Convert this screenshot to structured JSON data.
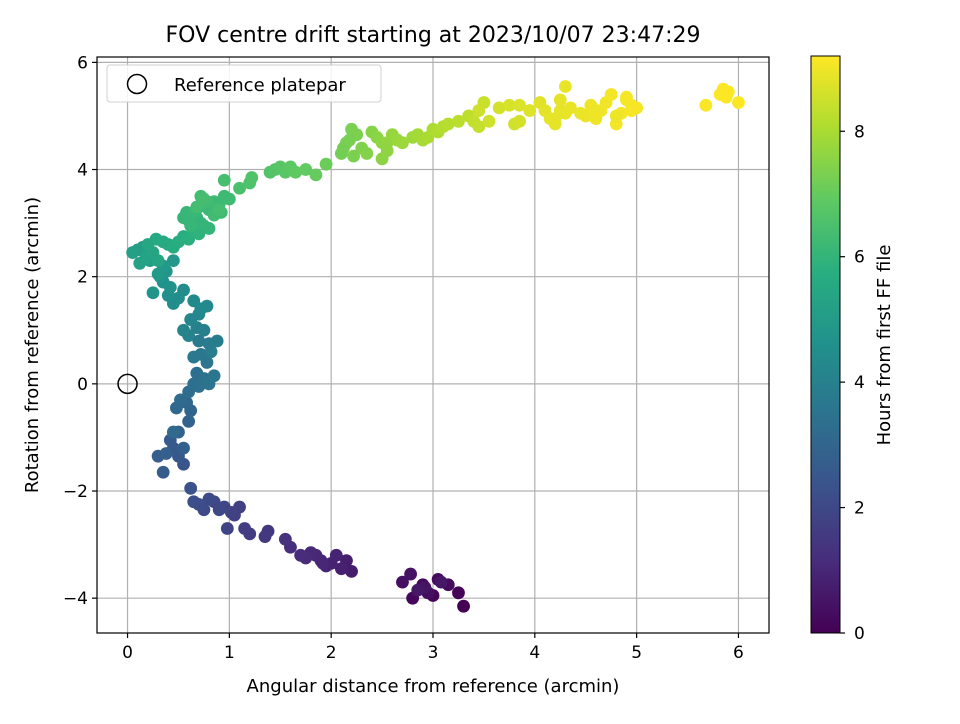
{
  "chart_data": {
    "type": "scatter",
    "title": "FOV centre drift starting at 2023/10/07 23:47:29",
    "xlabel": "Angular distance from reference (arcmin)",
    "ylabel": "Rotation from reference (arcmin)",
    "xlim": [
      -0.3,
      6.3
    ],
    "ylim": [
      -4.65,
      6.1
    ],
    "xticks": [
      0,
      1,
      2,
      3,
      4,
      5,
      6
    ],
    "yticks": [
      -4,
      -2,
      0,
      2,
      4,
      6
    ],
    "grid": true,
    "legend": {
      "position": "top-left",
      "entries": [
        "Reference platepar"
      ]
    },
    "reference_point": {
      "x": 0,
      "y": 0,
      "marker": "open-circle"
    },
    "colorbar": {
      "label": "Hours from first FF file",
      "range": [
        0,
        9.2
      ],
      "ticks": [
        0,
        2,
        4,
        6,
        8
      ],
      "colormap": "viridis"
    },
    "series": [
      {
        "x": [
          3.3,
          3.25,
          3.0,
          2.8,
          2.9,
          3.05,
          3.15,
          2.95,
          2.7,
          2.78,
          2.92,
          3.08,
          2.85
        ],
        "y": [
          -4.15,
          -3.9,
          -3.95,
          -4.0,
          -3.75,
          -3.65,
          -3.75,
          -3.9,
          -3.7,
          -3.55,
          -3.8,
          -3.7,
          -3.85
        ],
        "hours": [
          0.0,
          0.05,
          0.1,
          0.15,
          0.2,
          0.25,
          0.3,
          0.35,
          0.4,
          0.45,
          0.5,
          0.55,
          0.6
        ]
      },
      {
        "x": [
          2.2,
          2.15,
          2.1,
          2.0,
          1.95,
          1.9,
          1.85,
          1.8,
          1.75,
          1.7,
          1.6,
          1.55,
          1.38,
          1.35,
          1.05,
          1.1,
          1.02,
          0.98,
          0.95,
          0.9,
          0.85,
          0.8,
          0.75,
          0.7,
          0.65,
          0.62,
          1.2,
          1.15,
          2.05,
          1.92
        ],
        "y": [
          -3.5,
          -3.3,
          -3.45,
          -3.35,
          -3.4,
          -3.3,
          -3.2,
          -3.15,
          -3.25,
          -3.2,
          -3.05,
          -2.9,
          -2.75,
          -2.85,
          -2.45,
          -2.3,
          -2.4,
          -2.7,
          -2.3,
          -2.35,
          -2.2,
          -2.15,
          -2.35,
          -2.25,
          -2.2,
          -1.95,
          -2.8,
          -2.7,
          -3.2,
          -3.35
        ],
        "hours": [
          0.7,
          0.75,
          0.8,
          0.85,
          0.9,
          0.95,
          1.0,
          1.05,
          1.1,
          1.15,
          1.2,
          1.3,
          1.45,
          1.5,
          1.7,
          1.75,
          1.8,
          1.85,
          1.9,
          1.95,
          2.0,
          2.05,
          2.1,
          2.15,
          2.2,
          2.3,
          1.6,
          1.65,
          0.9,
          1.0
        ]
      },
      {
        "x": [
          0.55,
          0.5,
          0.45,
          0.42,
          0.35,
          0.3,
          0.38,
          0.5,
          0.55,
          0.6,
          0.62,
          0.58,
          0.48,
          0.45,
          0.52,
          0.6,
          0.65,
          0.68,
          0.7,
          0.75,
          0.8,
          0.85,
          0.78,
          0.72,
          0.65,
          0.7,
          0.8,
          0.88,
          0.82,
          0.75,
          0.68,
          0.6,
          0.55,
          0.62,
          0.7,
          0.78,
          0.72,
          0.65
        ],
        "y": [
          -1.5,
          -1.35,
          -1.2,
          -1.05,
          -1.65,
          -1.35,
          -1.3,
          -0.9,
          -1.2,
          -0.7,
          -0.5,
          -0.35,
          -0.45,
          -0.9,
          -0.3,
          -0.15,
          0.0,
          0.2,
          -0.05,
          0.1,
          0.0,
          0.15,
          0.4,
          0.55,
          0.5,
          0.8,
          0.75,
          0.8,
          0.6,
          1.0,
          1.05,
          0.9,
          1.0,
          1.2,
          1.3,
          1.45,
          1.4,
          1.55
        ],
        "hours": [
          2.4,
          2.5,
          2.55,
          2.6,
          2.65,
          2.7,
          2.75,
          2.8,
          2.85,
          2.9,
          3.0,
          3.05,
          3.1,
          3.15,
          3.2,
          3.25,
          3.3,
          3.35,
          3.4,
          3.45,
          3.5,
          3.55,
          3.6,
          3.65,
          3.7,
          3.75,
          3.8,
          3.85,
          3.9,
          3.95,
          4.0,
          4.05,
          4.1,
          4.15,
          4.2,
          4.25,
          4.3,
          4.35
        ]
      },
      {
        "x": [
          0.55,
          0.5,
          0.45,
          0.4,
          0.42,
          0.35,
          0.32,
          0.25,
          0.38,
          0.45,
          0.35,
          0.3,
          0.22,
          0.2,
          0.15,
          0.1,
          0.05,
          0.12,
          0.18,
          0.25,
          0.3,
          0.2,
          0.28,
          0.35,
          0.4,
          0.45,
          0.5,
          0.55,
          0.6,
          0.65,
          0.7,
          0.75,
          0.8,
          0.72,
          0.68,
          0.6,
          0.55,
          0.62,
          0.58,
          0.65,
          0.7,
          0.8,
          0.85,
          0.9,
          0.95,
          1.0,
          0.92,
          0.85,
          0.78,
          0.72,
          0.68,
          0.75,
          0.9,
          0.95
        ],
        "y": [
          1.75,
          1.6,
          1.5,
          1.65,
          1.8,
          1.9,
          2.0,
          1.7,
          2.1,
          2.3,
          2.2,
          2.05,
          2.3,
          2.45,
          2.55,
          2.5,
          2.45,
          2.25,
          2.35,
          2.45,
          2.3,
          2.6,
          2.7,
          2.65,
          2.6,
          2.55,
          2.65,
          2.75,
          2.7,
          2.85,
          2.8,
          2.95,
          2.9,
          3.0,
          3.1,
          3.05,
          3.1,
          2.95,
          3.2,
          3.2,
          3.3,
          3.25,
          3.4,
          3.35,
          3.5,
          3.45,
          3.2,
          3.15,
          3.4,
          3.5,
          3.3,
          3.45,
          3.25,
          3.8
        ],
        "hours": [
          4.4,
          4.45,
          4.5,
          4.55,
          4.6,
          4.65,
          4.7,
          4.75,
          4.8,
          4.85,
          4.9,
          4.95,
          5.0,
          5.05,
          5.1,
          5.15,
          5.2,
          5.25,
          5.3,
          5.35,
          5.4,
          5.45,
          5.5,
          5.55,
          5.6,
          5.65,
          5.7,
          5.75,
          5.8,
          5.85,
          5.9,
          5.95,
          6.0,
          6.0,
          6.02,
          6.04,
          6.06,
          6.08,
          6.1,
          6.12,
          6.14,
          6.16,
          6.18,
          6.2,
          6.22,
          6.24,
          6.26,
          6.28,
          6.3,
          6.32,
          6.34,
          6.36,
          6.38,
          6.4
        ]
      },
      {
        "x": [
          1.1,
          1.2,
          1.22,
          1.4,
          1.45,
          1.5,
          1.55,
          1.6,
          1.65,
          1.75,
          1.85,
          1.95,
          2.1,
          2.15,
          2.2,
          2.25,
          2.3,
          2.35,
          2.4,
          2.45,
          2.5,
          2.55,
          2.6,
          2.65,
          2.7,
          2.8,
          2.85,
          2.9,
          2.95,
          3.0,
          3.05,
          3.1,
          2.12,
          2.18,
          2.22,
          2.5,
          2.55
        ],
        "y": [
          3.65,
          3.75,
          3.85,
          3.95,
          4.0,
          4.05,
          3.95,
          4.05,
          3.95,
          4.0,
          3.9,
          4.1,
          4.3,
          4.5,
          4.75,
          4.65,
          4.4,
          4.3,
          4.7,
          4.6,
          4.5,
          4.5,
          4.65,
          4.55,
          4.5,
          4.6,
          4.65,
          4.55,
          4.6,
          4.75,
          4.7,
          4.8,
          4.4,
          4.55,
          4.25,
          4.2,
          4.35
        ],
        "hours": [
          6.5,
          6.55,
          6.6,
          6.65,
          6.7,
          6.75,
          6.8,
          6.85,
          6.9,
          6.95,
          7.0,
          7.1,
          7.2,
          7.25,
          7.3,
          7.35,
          7.4,
          7.45,
          7.5,
          7.55,
          7.6,
          7.65,
          7.7,
          7.75,
          7.8,
          7.85,
          7.9,
          7.95,
          8.0,
          8.05,
          8.1,
          8.15,
          7.22,
          7.28,
          7.32,
          7.58,
          7.62
        ]
      },
      {
        "x": [
          3.15,
          3.25,
          3.35,
          3.4,
          3.45,
          3.5,
          3.45,
          3.55,
          3.65,
          3.75,
          3.85,
          3.95,
          3.8,
          3.85,
          4.05,
          4.1,
          4.15,
          4.2,
          4.25,
          4.3,
          4.35,
          4.45,
          4.5,
          4.55,
          4.6,
          4.65,
          4.7,
          4.75,
          4.8,
          4.85,
          4.9,
          4.95,
          5.0,
          4.95,
          4.9,
          4.8,
          4.3,
          4.2,
          4.25,
          4.6
        ],
        "y": [
          4.85,
          4.9,
          5.0,
          4.9,
          4.8,
          5.25,
          5.1,
          4.9,
          5.15,
          5.2,
          5.2,
          5.1,
          4.85,
          4.9,
          5.25,
          5.1,
          4.95,
          4.85,
          5.1,
          5.55,
          5.15,
          5.05,
          5.0,
          5.2,
          4.95,
          5.1,
          5.25,
          5.4,
          4.85,
          5.05,
          5.35,
          5.1,
          5.15,
          5.2,
          5.3,
          5.0,
          5.05,
          4.95,
          5.3,
          5.1
        ],
        "hours": [
          8.2,
          8.25,
          8.3,
          8.35,
          8.4,
          8.45,
          8.5,
          8.55,
          8.6,
          8.65,
          8.7,
          8.75,
          8.55,
          8.6,
          8.8,
          8.82,
          8.84,
          8.86,
          8.88,
          8.9,
          8.92,
          8.94,
          8.96,
          8.98,
          9.0,
          9.02,
          9.04,
          9.06,
          9.05,
          9.07,
          9.08,
          9.1,
          9.12,
          9.1,
          9.09,
          9.0,
          8.9,
          8.85,
          8.88,
          9.0
        ]
      },
      {
        "x": [
          5.68,
          5.82,
          5.85,
          5.9,
          6.0,
          5.88
        ],
        "y": [
          5.2,
          5.4,
          5.5,
          5.45,
          5.25,
          5.35
        ],
        "hours": [
          9.14,
          9.16,
          9.17,
          9.18,
          9.2,
          9.19
        ]
      }
    ]
  }
}
